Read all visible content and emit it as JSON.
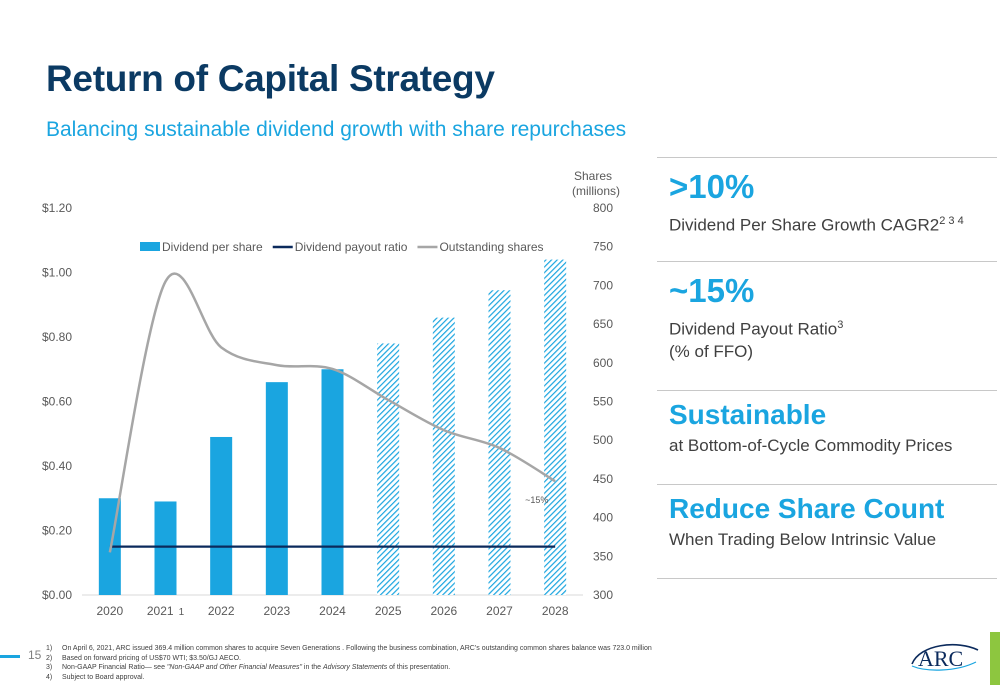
{
  "slide": {
    "title": "Return of Capital Strategy",
    "subtitle": "Balancing sustainable dividend growth with share repurchases",
    "page_number": "15"
  },
  "kpis": [
    {
      "title": "&gt;10%",
      "title_text": ">10%",
      "desc_line1": "Dividend Per Share Growth CAGR2",
      "desc_sup": "2 3 4",
      "desc_line2": ""
    },
    {
      "title_text": "~15%",
      "desc_line1": "Dividend Payout Ratio",
      "desc_sup": "3",
      "desc_line2": "(% of FFO)"
    },
    {
      "title_text": "Sustainable",
      "desc_line1": "at Bottom-of-Cycle Commodity Prices",
      "desc_sup": "",
      "desc_line2": ""
    },
    {
      "title_text": "Reduce Share Count",
      "desc_line1": "When Trading Below Intrinsic Value",
      "desc_sup": "",
      "desc_line2": ""
    }
  ],
  "footnotes": [
    {
      "num": "1)",
      "text": "On April 6, 2021, ARC  issued 369.4 million common shares to acquire Seven Generations . Following the business combination, ARC’s outstanding common shares balance was 723.0 million"
    },
    {
      "num": "2)",
      "text": "Based on forward pricing  of US$70 WTI; $3.50/GJ AECO."
    },
    {
      "num": "3)",
      "text_pre": "Non-GAAP Financial Ratio— see ",
      "text_em": "\"Non-GAAP and Other Financial Measures\"",
      "text_mid": " in the ",
      "text_em2": "Advisory Statements",
      "text_post": " of this presentation."
    },
    {
      "num": "4)",
      "text": "Subject to Board approval."
    }
  ],
  "logo_text": "ARC",
  "colors": {
    "title": "#0b3a63",
    "accent": "#1aa5e0",
    "payout_line": "#0b2a5c",
    "shares_line": "#a6a6a6",
    "green": "#8dc63f"
  },
  "chart_data": {
    "type": "bar",
    "categories": [
      "2020",
      "2021",
      "2022",
      "2023",
      "2024",
      "2025",
      "2026",
      "2027",
      "2028"
    ],
    "category_footnote": {
      "2021": "1"
    },
    "series": [
      {
        "name": "Dividend per share",
        "type": "bar",
        "axis": "left",
        "values": [
          0.3,
          0.29,
          0.49,
          0.66,
          0.7,
          0.78,
          0.86,
          0.945,
          1.04
        ],
        "hatched_from_index": 5
      },
      {
        "name": "Dividend payout ratio",
        "type": "line",
        "axis": "left",
        "values": [
          0.15,
          0.15,
          0.15,
          0.15,
          0.15,
          0.15,
          0.15,
          0.15,
          0.15
        ]
      },
      {
        "name": "Outstanding shares",
        "type": "line",
        "smooth": true,
        "axis": "right",
        "values": [
          355,
          705,
          620,
          597,
          592,
          552,
          513,
          490,
          447
        ]
      }
    ],
    "left_axis": {
      "min": 0,
      "max": 1.2,
      "ticks": [
        "$0.00",
        "$0.20",
        "$0.40",
        "$0.60",
        "$0.80",
        "$1.00",
        "$1.20"
      ]
    },
    "right_axis": {
      "min": 300,
      "max": 800,
      "label_line1": "Shares",
      "label_line2": "(millions)",
      "ticks": [
        "300",
        "350",
        "400",
        "450",
        "500",
        "550",
        "600",
        "650",
        "700",
        "750",
        "800"
      ]
    },
    "annotation": "~15%",
    "legend_position": "top"
  }
}
